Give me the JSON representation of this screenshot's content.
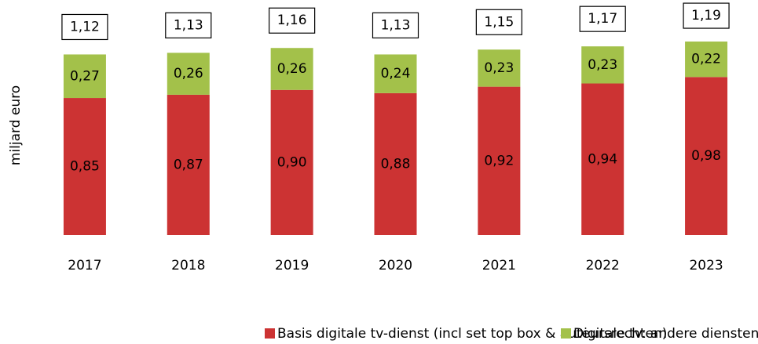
{
  "chart_data": {
    "type": "stacked_bar",
    "y_label": "miljard euro",
    "categories": [
      "2017",
      "2018",
      "2019",
      "2020",
      "2021",
      "2022",
      "2023"
    ],
    "series": [
      {
        "name": "Basis digitale tv-dienst (incl set top box & auteursrechten)",
        "color": "#cc3333",
        "values": [
          0.85,
          0.87,
          0.9,
          0.88,
          0.92,
          0.94,
          0.98
        ],
        "value_labels": [
          "0,85",
          "0,87",
          "0,90",
          "0,88",
          "0,92",
          "0,94",
          "0,98"
        ]
      },
      {
        "name": "Digitale tv: andere diensten",
        "color": "#a3c14a",
        "values": [
          0.27,
          0.26,
          0.26,
          0.24,
          0.23,
          0.23,
          0.22
        ],
        "value_labels": [
          "0,27",
          "0,26",
          "0,26",
          "0,24",
          "0,23",
          "0,23",
          "0,22"
        ]
      }
    ],
    "totals": [
      1.12,
      1.13,
      1.16,
      1.13,
      1.15,
      1.17,
      1.19
    ],
    "total_labels": [
      "1,12",
      "1,13",
      "1,16",
      "1,13",
      "1,15",
      "1,17",
      "1,19"
    ],
    "ylim": [
      0,
      1.2
    ],
    "legend": "bottom"
  }
}
